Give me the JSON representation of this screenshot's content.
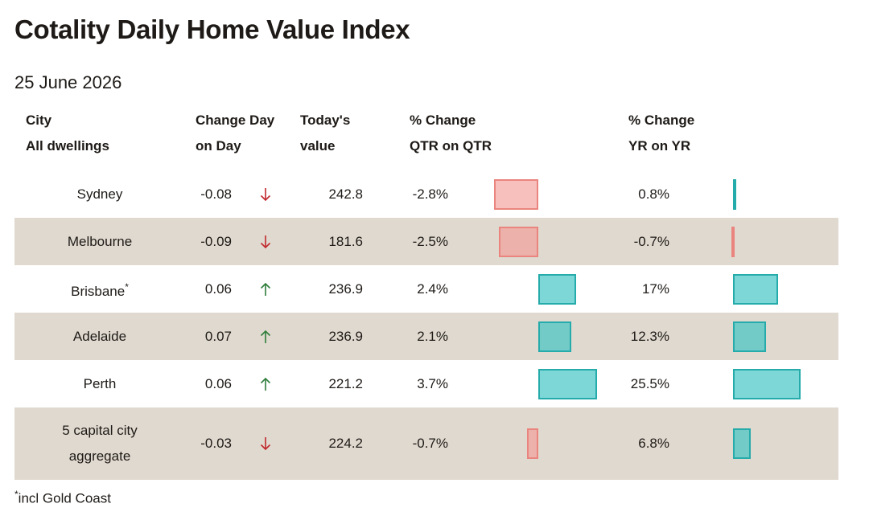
{
  "header": {
    "title": "Cotality Daily Home Value Index",
    "date": "25 June 2026"
  },
  "table": {
    "columns": [
      [
        "City",
        "All dwellings"
      ],
      [
        "Change Day",
        "on Day"
      ],
      [
        "Today's",
        "value"
      ],
      [
        "% Change",
        "QTR on QTR"
      ],
      [
        "% Change",
        "YR on YR"
      ]
    ],
    "rows": [
      {
        "city": "Sydney",
        "change_day": -0.08,
        "value": 242.8,
        "qtr": -2.8,
        "qtr_label": "-2.8%",
        "yr": 0.8,
        "yr_label": "0.8%"
      },
      {
        "city": "Melbourne",
        "change_day": -0.09,
        "value": 181.6,
        "qtr": -2.5,
        "qtr_label": "-2.5%",
        "yr": -0.7,
        "yr_label": "-0.7%"
      },
      {
        "city": "Brisbane",
        "marker": "*",
        "change_day": 0.06,
        "value": 236.9,
        "qtr": 2.4,
        "qtr_label": "2.4%",
        "yr": 17,
        "yr_label": "17%"
      },
      {
        "city": "Adelaide",
        "change_day": 0.07,
        "value": 236.9,
        "qtr": 2.1,
        "qtr_label": "2.1%",
        "yr": 12.3,
        "yr_label": "12.3%"
      },
      {
        "city": "Perth",
        "change_day": 0.06,
        "value": 221.2,
        "qtr": 3.7,
        "qtr_label": "3.7%",
        "yr": 25.5,
        "yr_label": "25.5%"
      },
      {
        "city": "5 capital city aggregate",
        "change_day": -0.03,
        "value": 224.2,
        "qtr": -0.7,
        "qtr_label": "-0.7%",
        "yr": 6.8,
        "yr_label": "6.8%"
      }
    ]
  },
  "footnote": {
    "marker": "*",
    "text": "incl Gold Coast"
  }
}
